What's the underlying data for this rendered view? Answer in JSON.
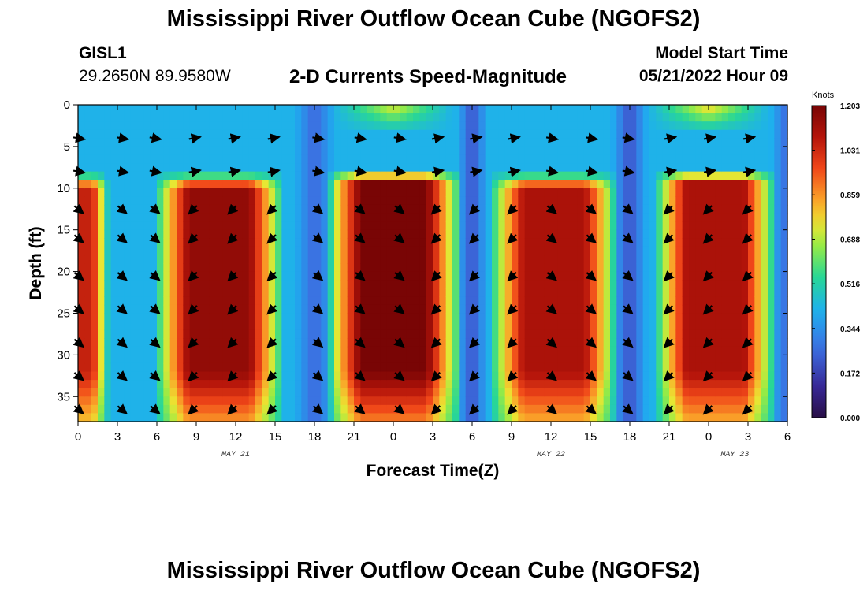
{
  "header": {
    "title": "Mississippi River Outflow Ocean Cube (NGOFS2)",
    "station": "GISL1",
    "coords": "29.2650N  89.9580W",
    "variable": "2-D Currents Speed-Magnitude",
    "model_start_label": "Model Start Time",
    "model_start_value": "05/21/2022 Hour 09"
  },
  "footer": {
    "title": "Mississippi River Outflow Ocean Cube (NGOFS2)"
  },
  "chart_data": {
    "type": "heatmap",
    "title": "2-D Currents Speed-Magnitude",
    "xlabel": "Forecast Time(Z)",
    "ylabel": "Depth (ft)",
    "x_range_hours": [
      0,
      54
    ],
    "ylim": [
      38,
      0
    ],
    "x_tick_labels": [
      "0",
      "3",
      "6",
      "9",
      "12",
      "15",
      "18",
      "21",
      "0",
      "3",
      "6",
      "9",
      "12",
      "15",
      "18",
      "21",
      "0",
      "3",
      "6"
    ],
    "y_ticks": [
      0,
      5,
      10,
      15,
      20,
      25,
      30,
      35
    ],
    "day_labels": [
      {
        "label": "MAY 21",
        "hour": 12
      },
      {
        "label": "MAY 22",
        "hour": 36
      },
      {
        "label": "MAY 23",
        "hour": 50
      }
    ],
    "colorbar": {
      "label": "Knots",
      "min": 0.0,
      "max": 1.203,
      "tick_values": [
        1.203,
        1.031,
        0.859,
        0.688,
        0.516,
        0.344,
        0.172,
        0.0
      ],
      "tick_labels": [
        "1.203",
        "1.031",
        "0.859",
        "0.688",
        "0.516",
        "0.344",
        "0.172",
        "0.000"
      ]
    },
    "speed_peaks": [
      {
        "x_start": 6.5,
        "x_end": 15,
        "y_start": 10,
        "y_end": 38,
        "peak": 1.15
      },
      {
        "x_start": 19.5,
        "x_end": 28.5,
        "y_start": 9.5,
        "y_end": 38,
        "peak": 1.2
      },
      {
        "x_start": 32,
        "x_end": 40.5,
        "y_start": 10,
        "y_end": 38,
        "peak": 1.1
      },
      {
        "x_start": 44.5,
        "x_end": 52.5,
        "y_start": 9.5,
        "y_end": 38,
        "peak": 1.1
      },
      {
        "x_start": -2,
        "x_end": 2,
        "y_start": 10,
        "y_end": 38,
        "peak": 1.05
      }
    ],
    "surface_peaks": [
      {
        "x_center": 24,
        "depth": 0,
        "value": 0.75
      },
      {
        "x_center": 48,
        "depth": 0,
        "value": 0.8
      }
    ],
    "arrow_columns_hours": [
      0,
      3.3,
      5.8,
      8.8,
      11.8,
      14.8,
      18.2,
      21.4,
      24.4,
      27.3,
      30.2,
      33.1,
      36,
      39,
      41.8,
      45,
      48,
      51
    ],
    "arrow_depths": [
      4,
      8,
      12.5,
      16,
      20.5,
      24.5,
      28.5,
      32.5,
      36.5
    ]
  }
}
